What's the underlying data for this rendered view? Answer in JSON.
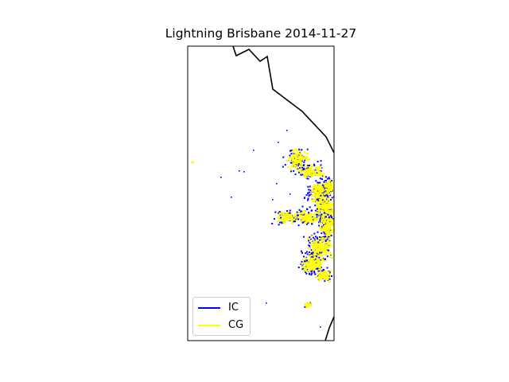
{
  "title": "Lightning Brisbane 2014-11-27",
  "colors": {
    "ic": "#0000ff",
    "cg": "#ffff00",
    "coast": "#000000",
    "frame": "#000000"
  },
  "legend": {
    "placement": "lower-left",
    "entries": [
      {
        "label": "IC",
        "color": "#0000ff"
      },
      {
        "label": "CG",
        "color": "#ffff00"
      }
    ]
  },
  "map_features": [
    "coastline",
    "lightning-strikes"
  ],
  "chart_data": {
    "type": "scatter",
    "title": "Lightning Brisbane 2014-11-27",
    "grid": false,
    "legend_placement": "lower-left",
    "series": [
      {
        "name": "IC",
        "color": "#0000ff"
      },
      {
        "name": "CG",
        "color": "#ffff00"
      }
    ]
  }
}
